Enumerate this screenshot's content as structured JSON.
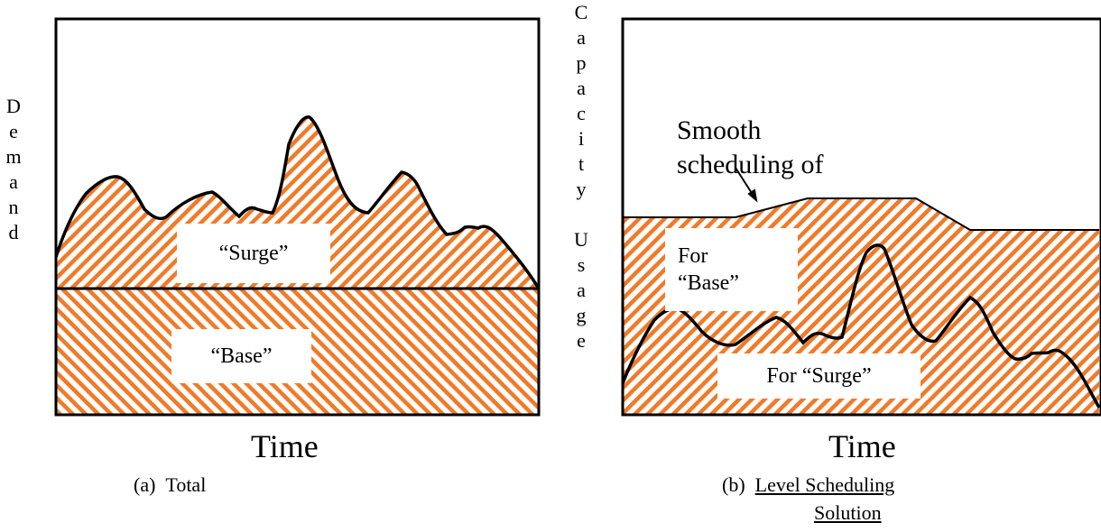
{
  "panel_a": {
    "y_axis_label": "Demand",
    "x_axis_label": "Time",
    "caption_prefix": "(a)",
    "caption_text": "Total",
    "regions": {
      "surge": "“Surge”",
      "base": "“Base”"
    }
  },
  "panel_b": {
    "y_axis_label_1": "Capacity",
    "y_axis_label_2": "Usage",
    "x_axis_label": "Time",
    "caption_prefix": "(b)",
    "caption_line1": "Level Scheduling",
    "caption_line2": "Solution",
    "annotation_line1": "Smooth",
    "annotation_line2": "scheduling of",
    "regions": {
      "for_base_line1": "For",
      "for_base_line2": "“Base”",
      "for_surge": "For “Surge”"
    }
  },
  "colors": {
    "hatch": "#f07a28",
    "outline": "#000000",
    "background": "#ffffff"
  }
}
